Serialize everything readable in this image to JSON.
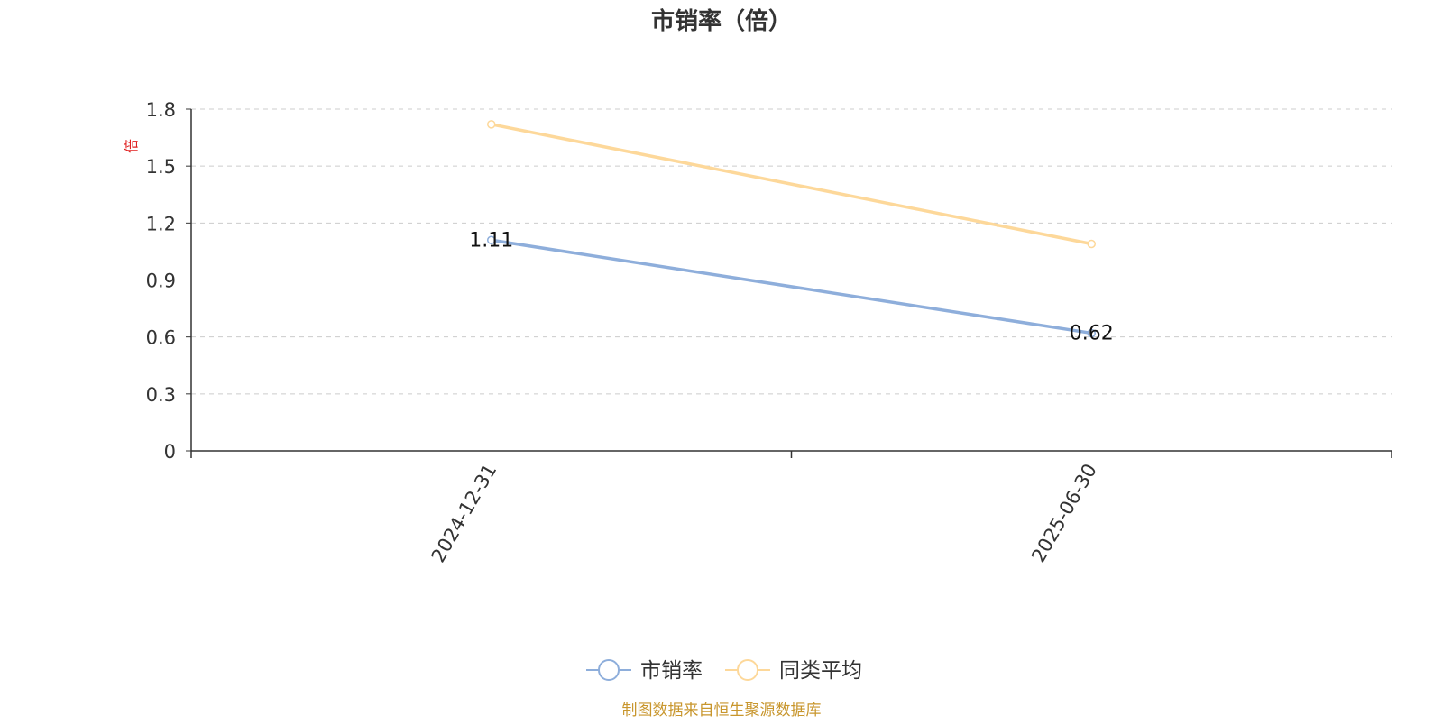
{
  "chart_data": {
    "type": "line",
    "title": "市销率（倍）",
    "ylabel": "倍",
    "xlabel": "",
    "categories": [
      "2024-12-31",
      "2025-06-30"
    ],
    "ylim": [
      0,
      1.8
    ],
    "yticks": [
      "0",
      "0.3",
      "0.6",
      "0.9",
      "1.2",
      "1.5",
      "1.8"
    ],
    "grid": true,
    "legend_position": "bottom-center",
    "series": [
      {
        "name": "市销率",
        "values": [
          1.11,
          0.62
        ],
        "labels": [
          "1.11",
          "0.62"
        ],
        "color": "#8eaedb"
      },
      {
        "name": "同类平均",
        "values": [
          1.72,
          1.09
        ],
        "labels": [
          "",
          ""
        ],
        "color": "#fdd89a"
      }
    ]
  },
  "footer": {
    "source_text": "制图数据来自恒生聚源数据库",
    "color": "#c8962d"
  },
  "colors": {
    "axis": "#333333",
    "grid": "#cccccc",
    "ylabel": "#e02020",
    "title": "#333333"
  }
}
